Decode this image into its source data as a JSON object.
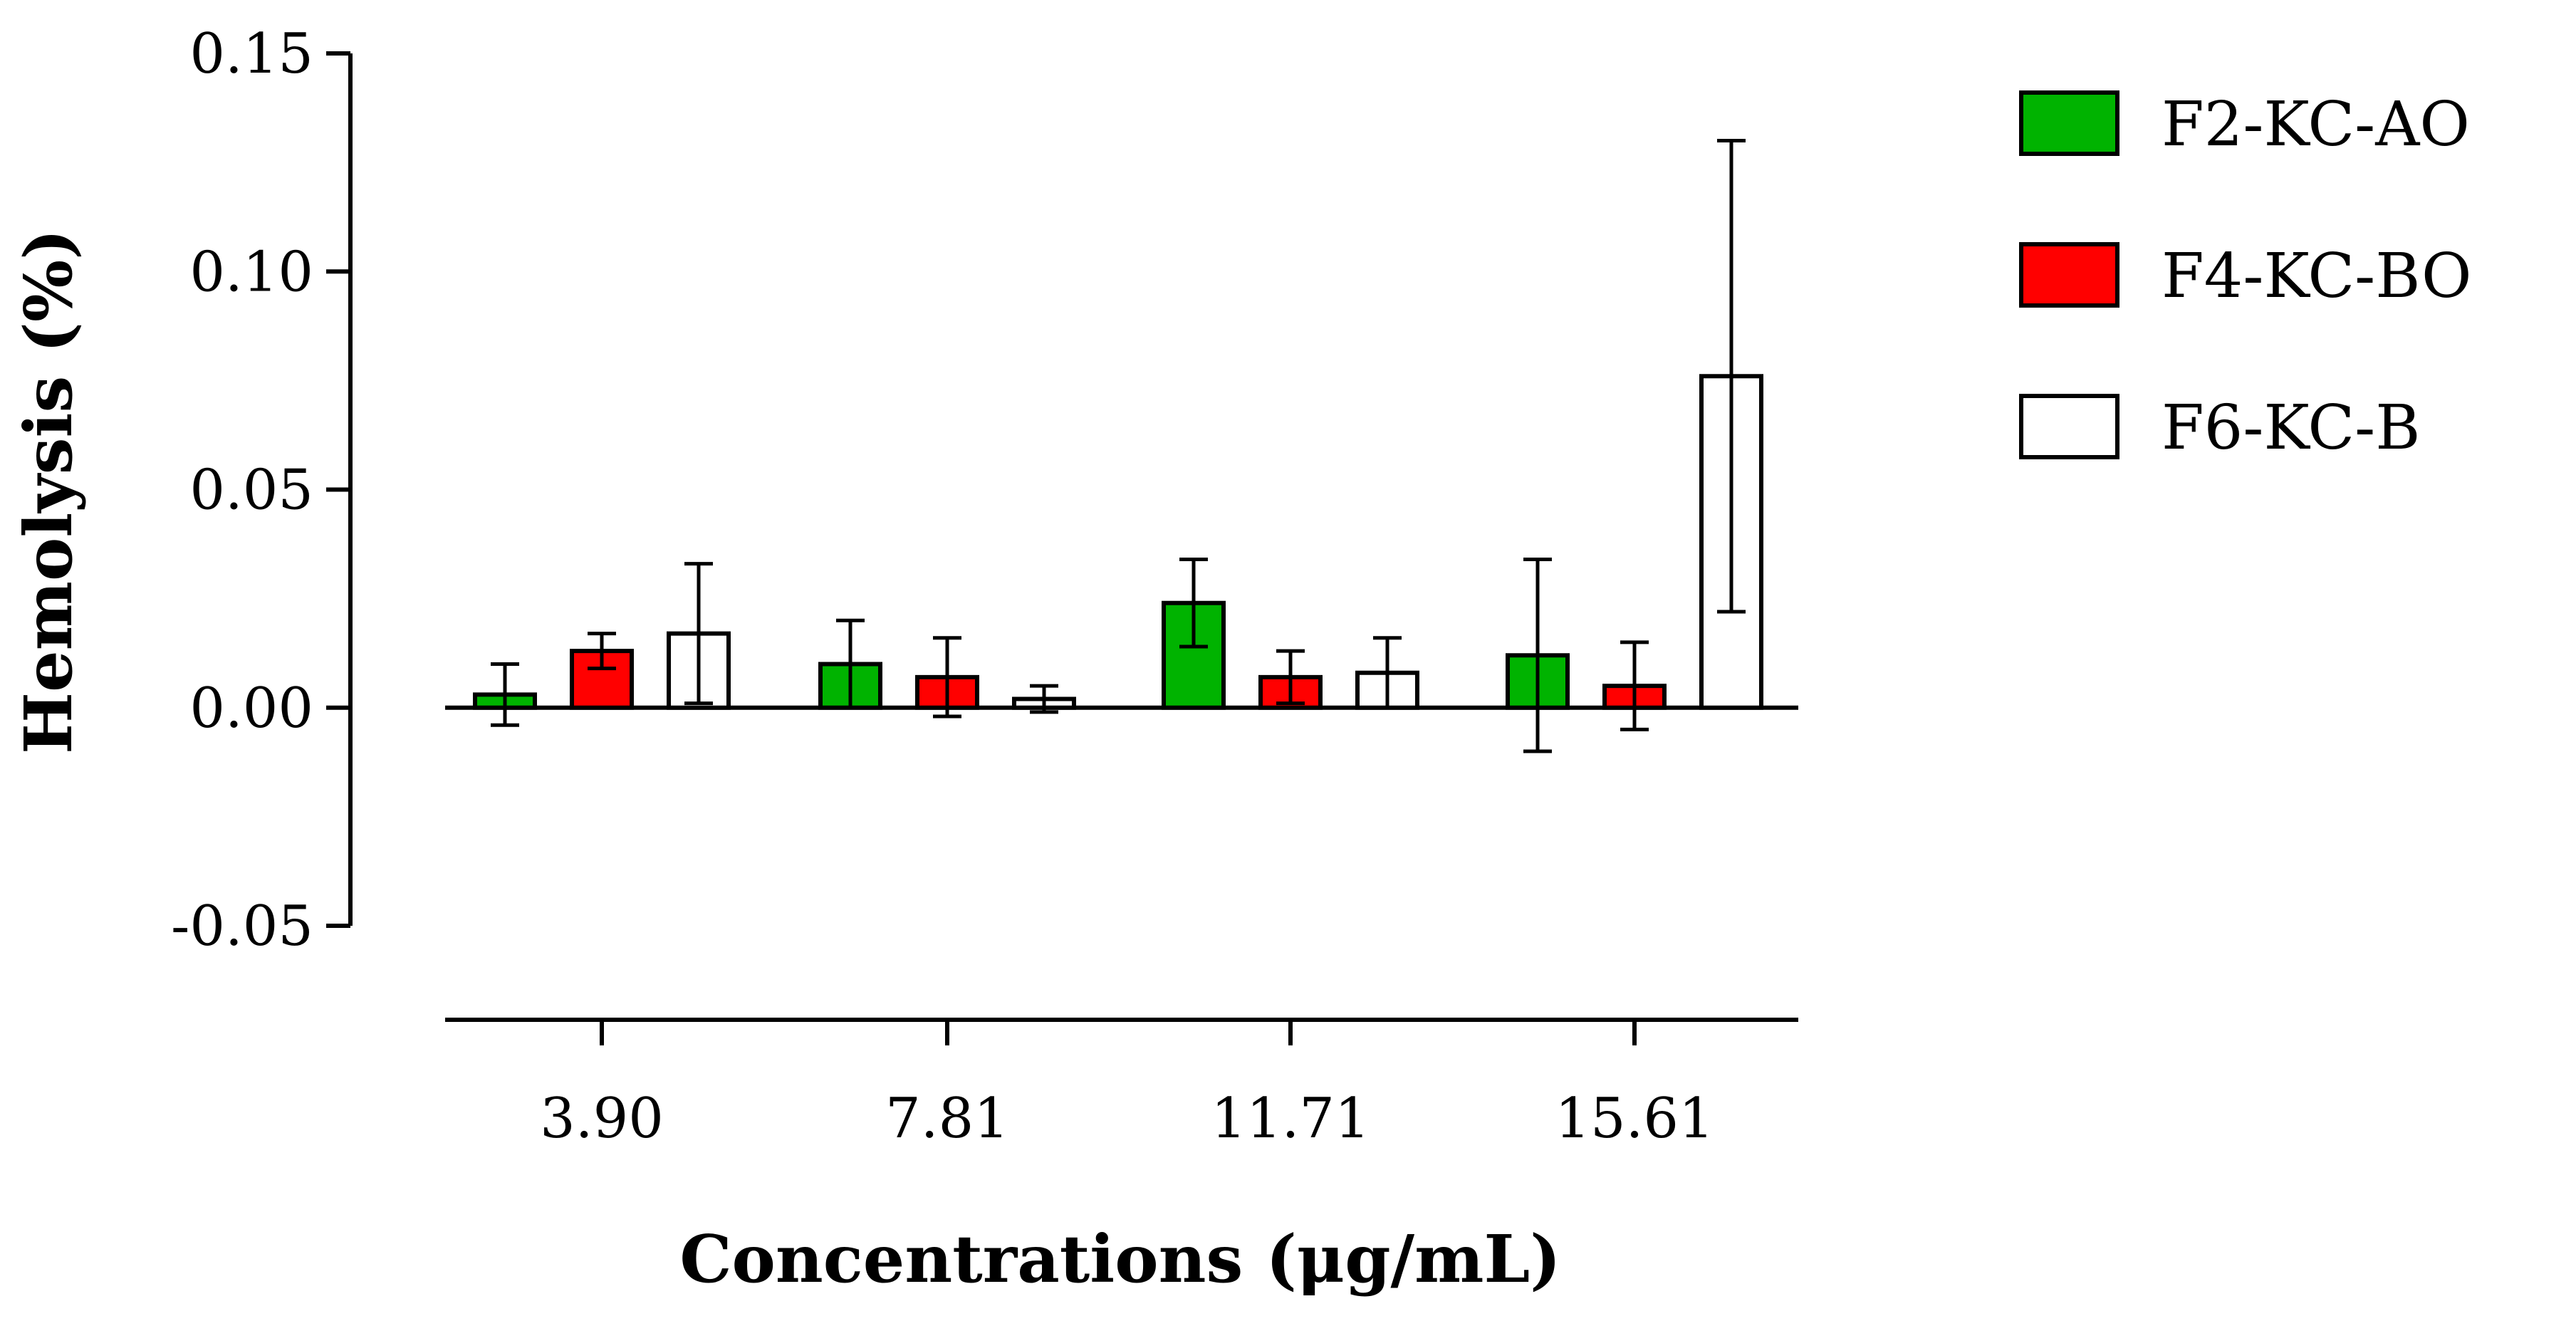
{
  "chart_data": {
    "type": "bar",
    "title": "",
    "xlabel": "Concentrations (μg/mL)",
    "ylabel": "Hemolysis (%)",
    "categories": [
      "3.90",
      "7.81",
      "11.71",
      "15.61"
    ],
    "ylim": [
      -0.05,
      0.15
    ],
    "yticks": [
      "-0.05",
      "0.00",
      "0.05",
      "0.10",
      "0.15"
    ],
    "ytick_values": [
      -0.05,
      0.0,
      0.05,
      0.1,
      0.15
    ],
    "legend_position": "top-right",
    "grid": false,
    "series": [
      {
        "name": "F2-KC-AO",
        "color": "#00b300",
        "values": [
          0.003,
          0.01,
          0.024,
          0.012
        ],
        "errors": [
          0.007,
          0.01,
          0.01,
          0.022
        ]
      },
      {
        "name": "F4-KC-BO",
        "color": "#ff0000",
        "values": [
          0.013,
          0.007,
          0.007,
          0.005
        ],
        "errors": [
          0.004,
          0.009,
          0.006,
          0.01
        ]
      },
      {
        "name": "F6-KC-B",
        "color": "#ffffff",
        "values": [
          0.017,
          0.002,
          0.008,
          0.076
        ],
        "errors": [
          0.016,
          0.003,
          0.008,
          0.054
        ]
      }
    ]
  }
}
